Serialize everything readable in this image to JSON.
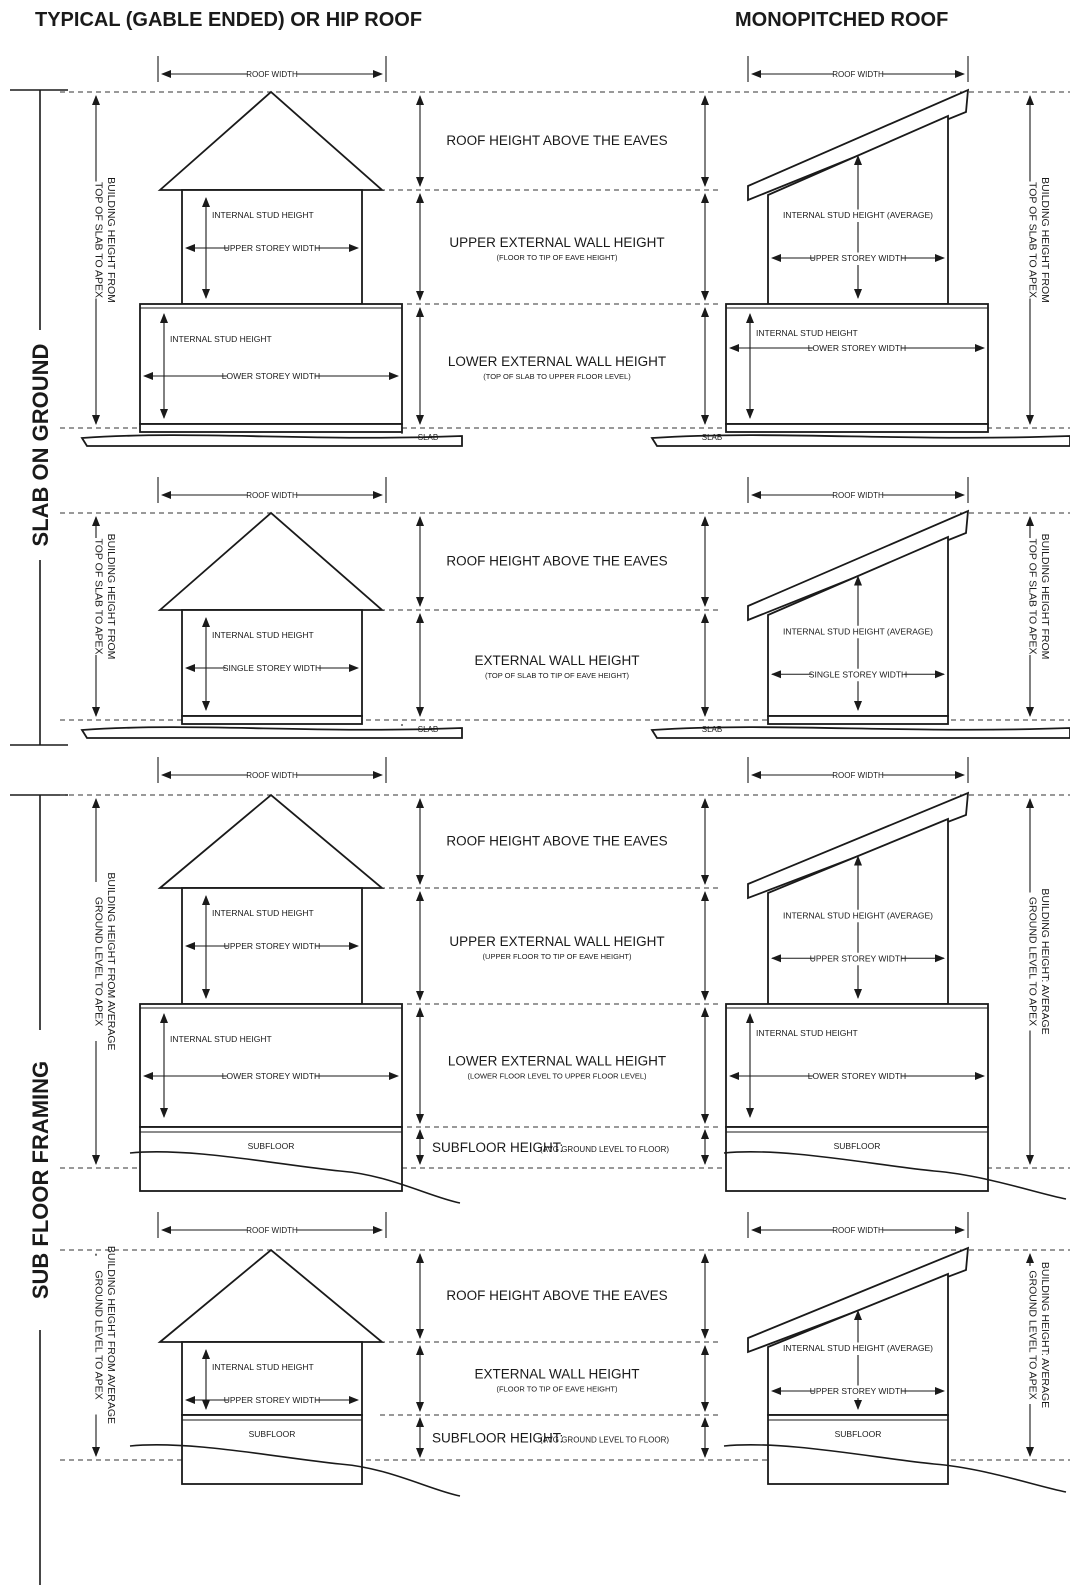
{
  "headers": {
    "left": "TYPICAL (GABLE ENDED) OR HIP ROOF",
    "right": "MONOPITCHED ROOF"
  },
  "sections": {
    "slab": "SLAB ON GROUND",
    "subfloor": "SUB FLOOR FRAMING"
  },
  "labels": {
    "roof_width": "ROOF WIDTH",
    "roof_height": "ROOF HEIGHT ABOVE THE EAVES",
    "internal_stud": "INTERNAL STUD HEIGHT",
    "internal_stud_avg": "INTERNAL STUD HEIGHT (AVERAGE)",
    "upper_storey_width": "UPPER STOREY WIDTH",
    "lower_storey_width": "LOWER STOREY WIDTH",
    "single_storey_width": "SINGLE STOREY WIDTH",
    "slab": "SLAB",
    "subfloor": "SUBFLOOR",
    "bh_slab_1": "BUILDING HEIGHT FROM",
    "bh_slab_2": "TOP OF SLAB TO APEX",
    "bh_avg_left_1": "BUILDING HEIGHT FROM AVERAGE",
    "bh_avg_left_2": "GROUND LEVEL TO APEX",
    "bh_avg_right_1": "BUILDING HEIGHT: AVERAGE",
    "bh_avg_right_2": "GROUND LEVEL TO APEX"
  },
  "rows": [
    {
      "middle": [
        {
          "title": "ROOF HEIGHT ABOVE THE EAVES",
          "sub": ""
        },
        {
          "title": "UPPER EXTERNAL WALL HEIGHT",
          "sub": "(FLOOR TO TIP OF EAVE HEIGHT)"
        },
        {
          "title": "LOWER  EXTERNAL WALL HEIGHT",
          "sub": "(TOP OF SLAB TO UPPER FLOOR LEVEL)"
        }
      ]
    },
    {
      "middle": [
        {
          "title": "ROOF HEIGHT ABOVE THE EAVES",
          "sub": ""
        },
        {
          "title": "EXTERNAL WALL HEIGHT",
          "sub": "(TOP OF SLAB TO TIP OF EAVE HEIGHT)"
        }
      ]
    },
    {
      "middle": [
        {
          "title": "ROOF HEIGHT ABOVE THE EAVES",
          "sub": ""
        },
        {
          "title": "UPPER  EXTERNAL WALL HEIGHT",
          "sub": "(UPPER FLOOR TO TIP OF EAVE HEIGHT)"
        },
        {
          "title": "LOWER  EXTERNAL WALL HEIGHT",
          "sub": "(LOWER FLOOR LEVEL TO UPPER FLOOR LEVEL)"
        }
      ],
      "subfloor_title": "SUBFLOOR HEIGHT:",
      "subfloor_sub": "(AVG GROUND LEVEL TO FLOOR)"
    },
    {
      "middle": [
        {
          "title": "ROOF HEIGHT ABOVE THE EAVES",
          "sub": ""
        },
        {
          "title": "EXTERNAL WALL HEIGHT",
          "sub": "(FLOOR TO TIP OF EAVE HEIGHT)"
        }
      ],
      "subfloor_title": "SUBFLOOR HEIGHT:",
      "subfloor_sub": "(AVG GROUND LEVEL TO FLOOR)"
    }
  ]
}
